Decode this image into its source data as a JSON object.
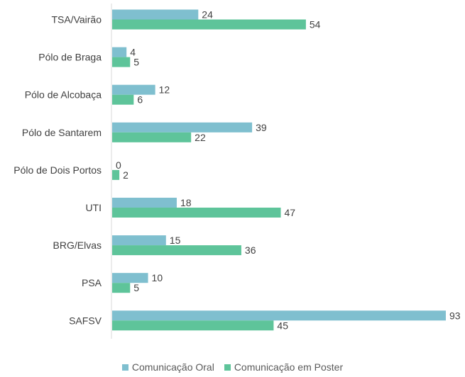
{
  "chart_data": {
    "type": "bar",
    "orientation": "horizontal",
    "categories": [
      "TSA/Vairão",
      "Pólo de Braga",
      "Pólo de Alcobaça",
      "Pólo de Santarem",
      "Pólo de Dois Portos",
      "UTI",
      "BRG/Elvas",
      "PSA",
      "SAFSV"
    ],
    "series": [
      {
        "name": "Comunicação Oral",
        "color": "#7fbfcf",
        "values": [
          24,
          4,
          12,
          39,
          0,
          18,
          15,
          10,
          93
        ]
      },
      {
        "name": "Comunicação em Poster",
        "color": "#5ec49a",
        "values": [
          54,
          5,
          6,
          22,
          2,
          47,
          36,
          5,
          45
        ]
      }
    ],
    "xlim": [
      0,
      93
    ],
    "grid": false,
    "legend_position": "bottom"
  }
}
